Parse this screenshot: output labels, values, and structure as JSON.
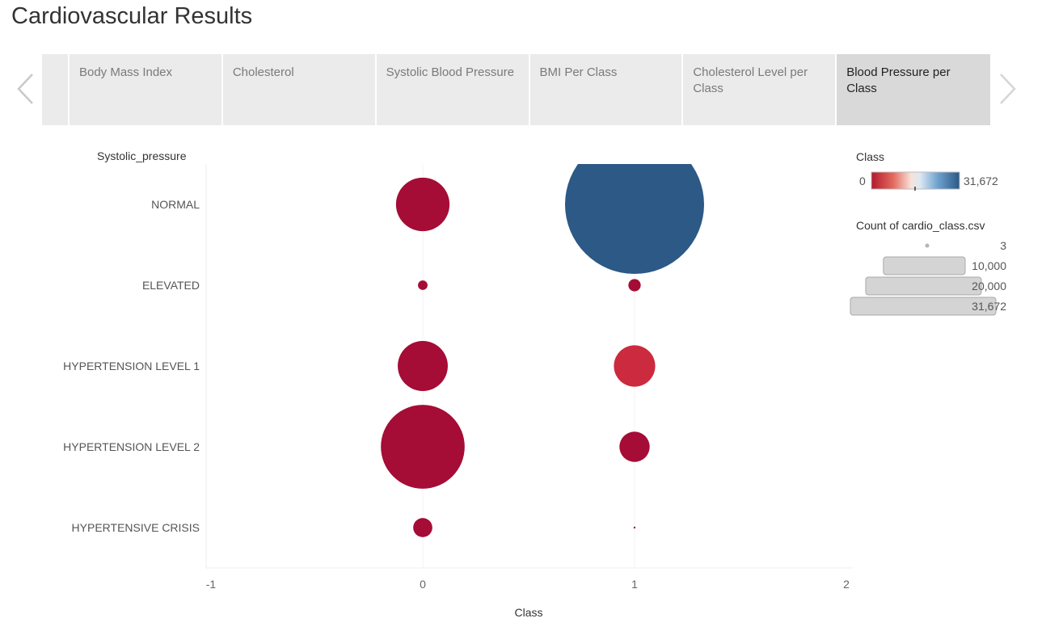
{
  "page": {
    "title": "Cardiovascular Results"
  },
  "tabs": [
    {
      "label": "Body Mass Index",
      "active": false
    },
    {
      "label": "Cholesterol",
      "active": false
    },
    {
      "label": "Systolic Blood Pressure",
      "active": false
    },
    {
      "label": "BMI Per Class",
      "active": false
    },
    {
      "label": "Cholesterol Level per Class",
      "active": false
    },
    {
      "label": "Blood Pressure per Class",
      "active": true
    }
  ],
  "icons": {
    "prev": "chevron-left-icon",
    "next": "chevron-right-icon"
  },
  "colors": {
    "red": "#a50c36",
    "red_mid": "#cc2a3e",
    "blue": "#2c5985",
    "gridline": "#ececec",
    "size_legend_fill": "#d4d4d4"
  },
  "chart_data": {
    "type": "scatter",
    "subtype": "bubble",
    "row_field_label": "Systolic_pressure",
    "xlabel": "Class",
    "xlim": [
      -1,
      2
    ],
    "x_ticks": [
      "-1",
      "0",
      "1",
      "2"
    ],
    "categories": [
      "NORMAL",
      "ELEVATED",
      "HYPERTENSION LEVEL 1",
      "HYPERTENSION LEVEL 2",
      "HYPERTENSIVE CRISIS"
    ],
    "points": [
      {
        "category": "NORMAL",
        "class": 0,
        "count": 4700
      },
      {
        "category": "NORMAL",
        "class": 1,
        "count": 31672
      },
      {
        "category": "ELEVATED",
        "class": 0,
        "count": 150
      },
      {
        "category": "ELEVATED",
        "class": 1,
        "count": 250
      },
      {
        "category": "HYPERTENSION LEVEL 1",
        "class": 0,
        "count": 4100
      },
      {
        "category": "HYPERTENSION LEVEL 1",
        "class": 1,
        "count": 2800
      },
      {
        "category": "HYPERTENSION LEVEL 2",
        "class": 0,
        "count": 11500
      },
      {
        "category": "HYPERTENSION LEVEL 2",
        "class": 1,
        "count": 1500
      },
      {
        "category": "HYPERTENSIVE CRISIS",
        "class": 0,
        "count": 600
      },
      {
        "category": "HYPERTENSIVE CRISIS",
        "class": 1,
        "count": 3
      }
    ],
    "color_legend": {
      "title": "Class",
      "min_label": "0",
      "max_label": "31,672"
    },
    "size_legend": {
      "title": "Count of cardio_class.csv",
      "items": [
        {
          "label": "3",
          "value": 3
        },
        {
          "label": "10,000",
          "value": 10000
        },
        {
          "label": "20,000",
          "value": 20000
        },
        {
          "label": "31,672",
          "value": 31672
        }
      ]
    }
  }
}
